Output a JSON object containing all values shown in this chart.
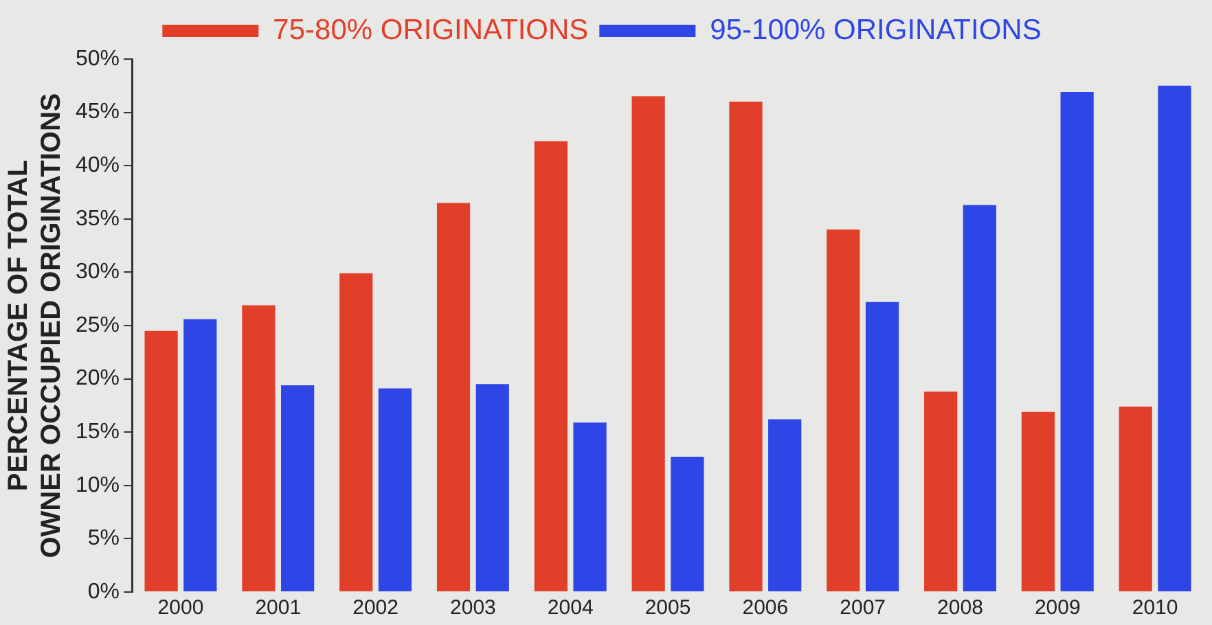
{
  "chart_data": {
    "type": "bar",
    "ylabel": "PERCENTAGE OF TOTAL\nOWNER OCCUPIED ORIGINATIONS",
    "categories": [
      "2000",
      "2001",
      "2002",
      "2003",
      "2004",
      "2005",
      "2006",
      "2007",
      "2008",
      "2009",
      "2010"
    ],
    "series": [
      {
        "name": "75-80% ORIGINATIONS",
        "color": "#e23f2b",
        "values": [
          24.5,
          26.9,
          29.9,
          36.5,
          42.3,
          46.5,
          46.0,
          34.0,
          18.8,
          16.9,
          17.4
        ]
      },
      {
        "name": "95-100% ORIGINATIONS",
        "color": "#2f46e6",
        "values": [
          25.6,
          19.4,
          19.1,
          19.5,
          15.9,
          12.7,
          16.2,
          27.2,
          36.3,
          46.9,
          47.5
        ]
      }
    ],
    "ylim": [
      0,
      50
    ],
    "yticks": [
      {
        "value": 0,
        "label": "0%"
      },
      {
        "value": 5,
        "label": "5%"
      },
      {
        "value": 10,
        "label": "10%"
      },
      {
        "value": 15,
        "label": "15%"
      },
      {
        "value": 20,
        "label": "20%"
      },
      {
        "value": 25,
        "label": "25%"
      },
      {
        "value": 30,
        "label": "30%"
      },
      {
        "value": 35,
        "label": "35%"
      },
      {
        "value": 40,
        "label": "40%"
      },
      {
        "value": 45,
        "label": "45%"
      },
      {
        "value": 50,
        "label": "50%"
      }
    ],
    "grid": false,
    "legend": "top"
  }
}
